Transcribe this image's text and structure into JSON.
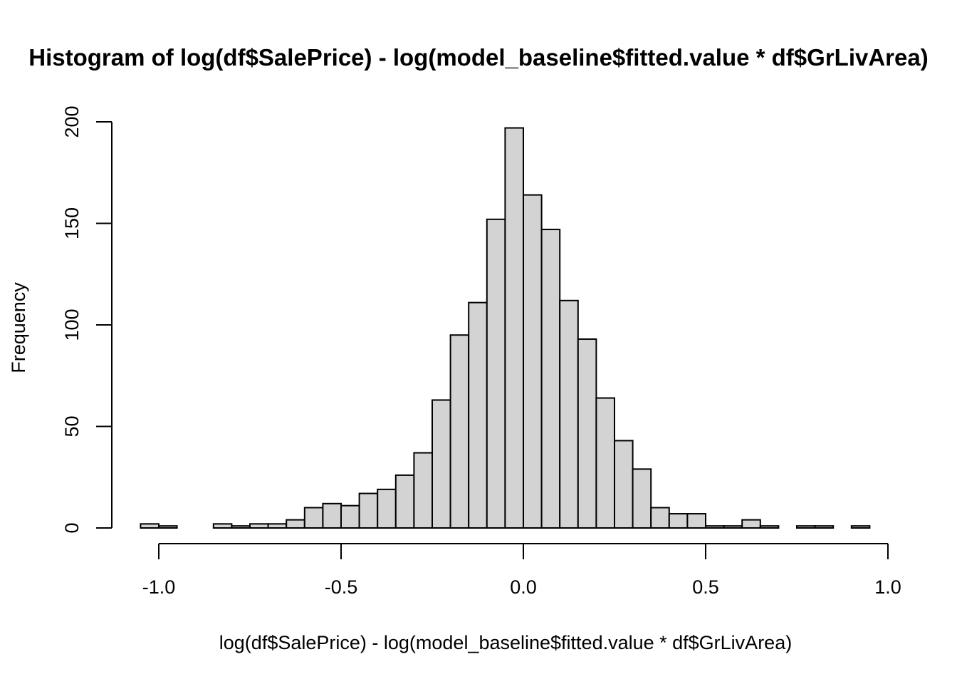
{
  "chart_data": {
    "type": "bar",
    "subtype": "histogram",
    "title": "Histogram of log(df$SalePrice) - log(model_baseline$fitted.value * df$GrLivArea)",
    "xlabel": "log(df$SalePrice) - log(model_baseline$fitted.value * df$GrLivArea)",
    "ylabel": "Frequency",
    "bin_width": 0.05,
    "bin_start": -1.05,
    "counts": [
      2,
      1,
      0,
      0,
      2,
      1,
      2,
      2,
      4,
      10,
      12,
      11,
      17,
      19,
      26,
      37,
      63,
      95,
      111,
      152,
      197,
      164,
      147,
      112,
      93,
      64,
      43,
      29,
      10,
      7,
      7,
      1,
      1,
      4,
      1,
      0,
      1,
      1,
      0,
      1
    ],
    "x_ticks": [
      -1.0,
      -0.5,
      0.0,
      0.5,
      1.0
    ],
    "x_tick_labels": [
      "-1.0",
      "-0.5",
      "0.0",
      "0.5",
      "1.0"
    ],
    "y_ticks": [
      0,
      50,
      100,
      150,
      200
    ],
    "y_tick_labels": [
      "0",
      "50",
      "100",
      "150",
      "200"
    ],
    "xlim": [
      -1.0,
      1.0
    ],
    "ylim": [
      0,
      200
    ],
    "bar_fill": "#d3d3d3",
    "bar_stroke": "#000000",
    "grid": false,
    "legend": "none"
  }
}
